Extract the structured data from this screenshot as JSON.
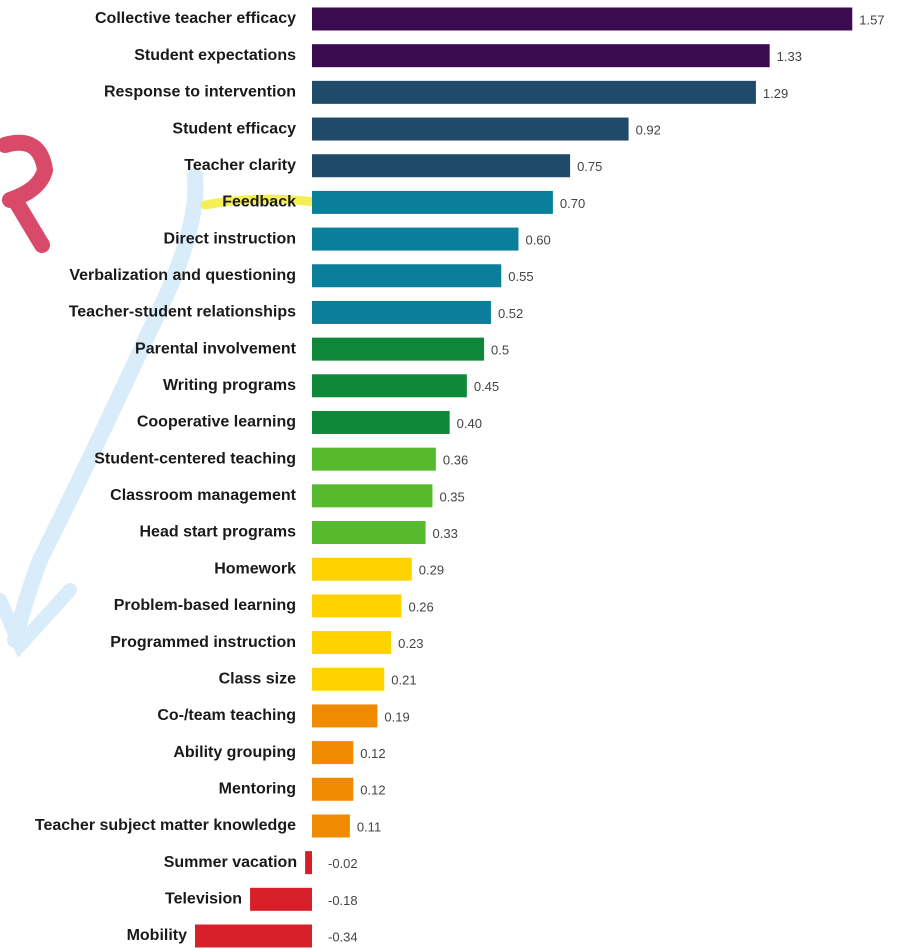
{
  "chart_data": {
    "type": "barh",
    "categories": [
      "Collective teacher efficacy",
      "Student expectations",
      "Response to intervention",
      "Student efficacy",
      "Teacher clarity",
      "Feedback",
      "Direct instruction",
      "Verbalization and questioning",
      "Teacher-student relationships",
      "Parental involvement",
      "Writing programs",
      "Cooperative learning",
      "Student-centered teaching",
      "Classroom management",
      "Head start programs",
      "Homework",
      "Problem-based learning",
      "Programmed instruction",
      "Class size",
      "Co-/team teaching",
      "Ability grouping",
      "Mentoring",
      "Teacher subject matter knowledge",
      "Summer vacation",
      "Television",
      "Mobility"
    ],
    "values": [
      1.57,
      1.33,
      1.29,
      0.92,
      0.75,
      0.7,
      0.6,
      0.55,
      0.52,
      0.5,
      0.45,
      0.4,
      0.36,
      0.35,
      0.33,
      0.29,
      0.26,
      0.23,
      0.21,
      0.19,
      0.12,
      0.12,
      0.11,
      -0.02,
      -0.18,
      -0.34
    ],
    "value_labels": [
      "1.57",
      "1.33",
      "1.29",
      "0.92",
      "0.75",
      "0.70",
      "0.60",
      "0.55",
      "0.52",
      "0.5",
      "0.45",
      "0.40",
      "0.36",
      "0.35",
      "0.33",
      "0.29",
      "0.26",
      "0.23",
      "0.21",
      "0.19",
      "0.12",
      "0.12",
      "0.11",
      "-0.02",
      "-0.18",
      "-0.34"
    ],
    "colors": [
      "#3a0b4e",
      "#3a0b4e",
      "#1f4a6a",
      "#1f4a6a",
      "#1f4a6a",
      "#0a7e9b",
      "#0a7e9b",
      "#0a7e9b",
      "#0a7e9b",
      "#10883a",
      "#10883a",
      "#10883a",
      "#57b92e",
      "#57b92e",
      "#57b92e",
      "#ffd200",
      "#ffd200",
      "#ffd200",
      "#ffd200",
      "#f08a00",
      "#f08a00",
      "#f08a00",
      "#f08a00",
      "#d71f2a",
      "#d71f2a",
      "#d71f2a"
    ]
  }
}
